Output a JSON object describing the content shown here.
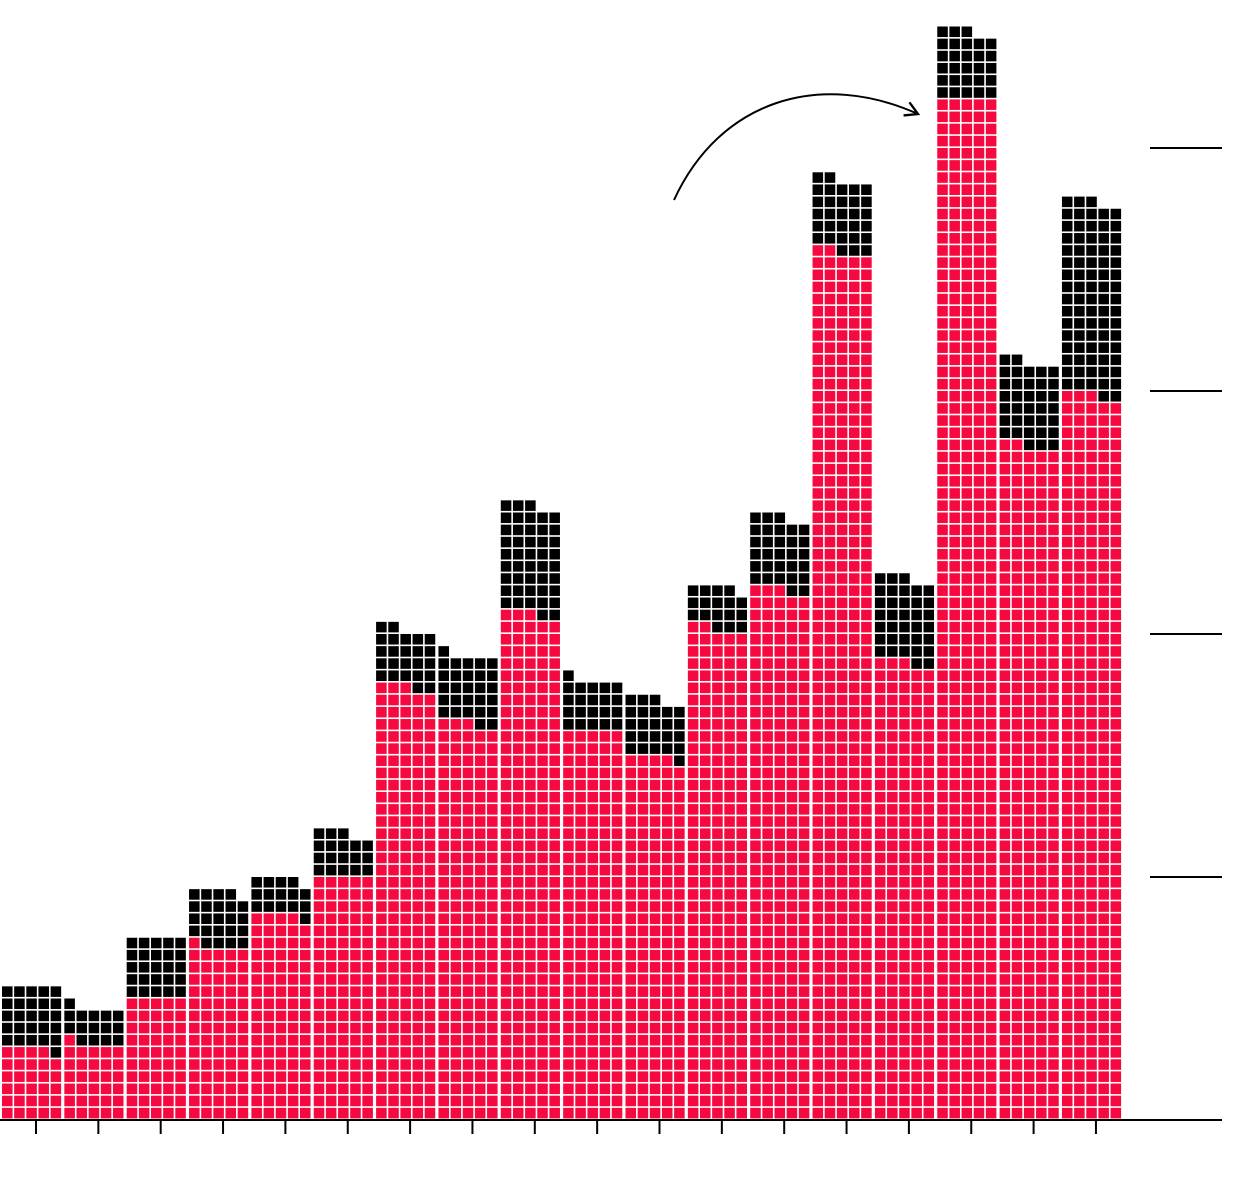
{
  "chart_data": {
    "type": "waffle-bar",
    "categories": [
      null,
      null,
      null,
      null,
      null,
      null,
      null,
      null,
      null,
      null,
      null,
      null,
      null,
      null,
      null,
      null,
      null,
      null
    ],
    "series": [
      {
        "color": "#f5093f",
        "values": [
          29,
          31,
          50,
          71,
          84,
          100,
          178,
          163,
          208,
          160,
          149,
          202,
          218,
          357,
          188,
          420,
          277,
          298
        ]
      },
      {
        "color": "#000000",
        "values": [
          26,
          15,
          25,
          23,
          15,
          18,
          24,
          28,
          45,
          21,
          24,
          17,
          30,
          30,
          35,
          28,
          35,
          80
        ]
      }
    ],
    "ylim": [
      0,
      400
    ],
    "yticks": [
      0,
      100,
      200,
      300,
      400
    ]
  }
}
